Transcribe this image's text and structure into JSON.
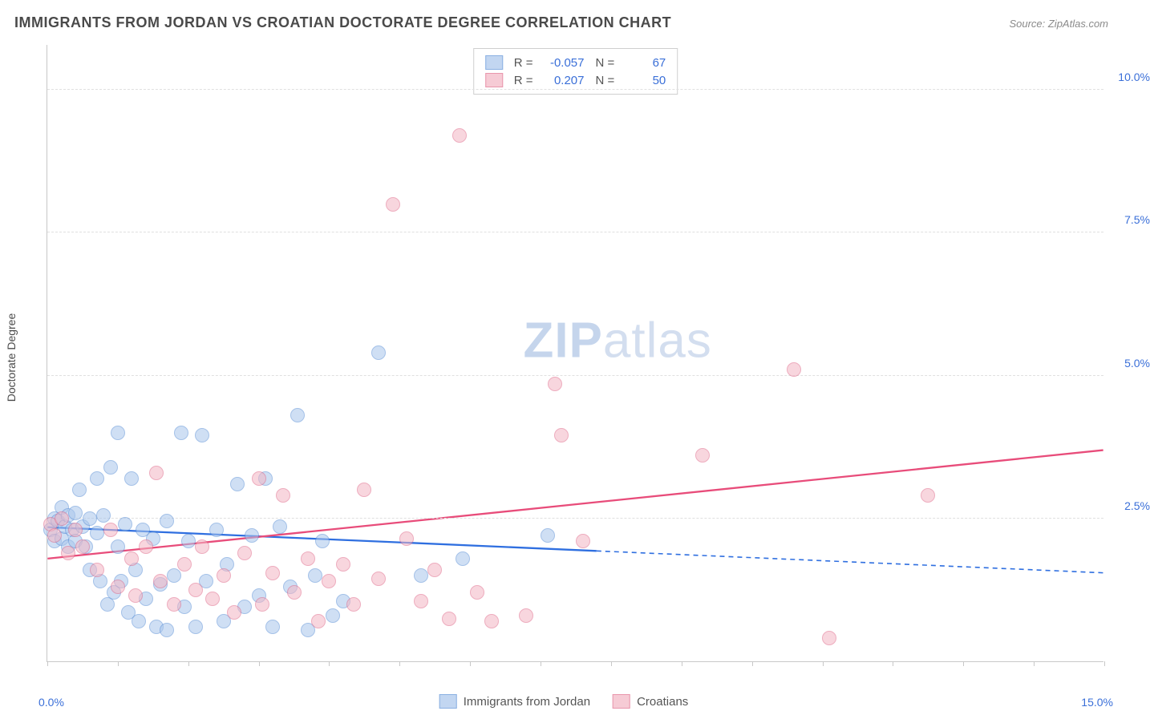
{
  "title": "IMMIGRANTS FROM JORDAN VS CROATIAN DOCTORATE DEGREE CORRELATION CHART",
  "source": "Source: ZipAtlas.com",
  "ylabel": "Doctorate Degree",
  "watermark_zip": "ZIP",
  "watermark_atlas": "atlas",
  "chart": {
    "type": "scatter",
    "xlim": [
      0,
      15
    ],
    "ylim": [
      0,
      10.8
    ],
    "x_axis_labels": {
      "left": "0.0%",
      "right": "15.0%"
    },
    "yticks": [
      {
        "v": 2.5,
        "label": "2.5%"
      },
      {
        "v": 5.0,
        "label": "5.0%"
      },
      {
        "v": 7.5,
        "label": "7.5%"
      },
      {
        "v": 10.0,
        "label": "10.0%"
      }
    ],
    "xtick_positions": [
      0,
      1,
      2,
      3,
      4,
      5,
      6,
      7,
      8,
      9,
      10,
      11,
      12,
      13,
      14,
      15
    ],
    "background_color": "#ffffff",
    "grid_color": "#e0e0e0",
    "marker_radius": 9,
    "marker_stroke": 1.2,
    "series": [
      {
        "key": "jordan",
        "label": "Immigrants from Jordan",
        "fill": "#a9c6ec",
        "stroke": "#5a8fd6",
        "fill_opacity": 0.55,
        "R": "-0.057",
        "N": "67",
        "trend": {
          "y_at_x0": 2.35,
          "y_at_xmax": 1.55,
          "solid_until_x": 7.8,
          "color": "#2f6fe0",
          "width": 2.3
        },
        "points": [
          [
            0.05,
            2.3
          ],
          [
            0.1,
            2.5
          ],
          [
            0.1,
            2.1
          ],
          [
            0.15,
            2.45
          ],
          [
            0.2,
            2.7
          ],
          [
            0.2,
            2.15
          ],
          [
            0.25,
            2.35
          ],
          [
            0.3,
            2.55
          ],
          [
            0.3,
            2.0
          ],
          [
            0.35,
            2.3
          ],
          [
            0.4,
            2.6
          ],
          [
            0.4,
            2.1
          ],
          [
            0.45,
            3.0
          ],
          [
            0.5,
            2.35
          ],
          [
            0.55,
            2.0
          ],
          [
            0.6,
            2.5
          ],
          [
            0.6,
            1.6
          ],
          [
            0.7,
            3.2
          ],
          [
            0.7,
            2.25
          ],
          [
            0.75,
            1.4
          ],
          [
            0.8,
            2.55
          ],
          [
            0.85,
            1.0
          ],
          [
            0.9,
            3.4
          ],
          [
            0.95,
            1.2
          ],
          [
            1.0,
            2.0
          ],
          [
            1.0,
            4.0
          ],
          [
            1.05,
            1.4
          ],
          [
            1.1,
            2.4
          ],
          [
            1.15,
            0.85
          ],
          [
            1.2,
            3.2
          ],
          [
            1.25,
            1.6
          ],
          [
            1.3,
            0.7
          ],
          [
            1.35,
            2.3
          ],
          [
            1.4,
            1.1
          ],
          [
            1.5,
            2.15
          ],
          [
            1.55,
            0.6
          ],
          [
            1.6,
            1.35
          ],
          [
            1.7,
            2.45
          ],
          [
            1.7,
            0.55
          ],
          [
            1.8,
            1.5
          ],
          [
            1.9,
            4.0
          ],
          [
            1.95,
            0.95
          ],
          [
            2.0,
            2.1
          ],
          [
            2.1,
            0.6
          ],
          [
            2.2,
            3.95
          ],
          [
            2.25,
            1.4
          ],
          [
            2.4,
            2.3
          ],
          [
            2.5,
            0.7
          ],
          [
            2.55,
            1.7
          ],
          [
            2.7,
            3.1
          ],
          [
            2.8,
            0.95
          ],
          [
            2.9,
            2.2
          ],
          [
            3.0,
            1.15
          ],
          [
            3.1,
            3.2
          ],
          [
            3.2,
            0.6
          ],
          [
            3.3,
            2.35
          ],
          [
            3.45,
            1.3
          ],
          [
            3.55,
            4.3
          ],
          [
            3.7,
            0.55
          ],
          [
            3.8,
            1.5
          ],
          [
            3.9,
            2.1
          ],
          [
            4.05,
            0.8
          ],
          [
            4.2,
            1.05
          ],
          [
            4.7,
            5.4
          ],
          [
            5.3,
            1.5
          ],
          [
            5.9,
            1.8
          ],
          [
            7.1,
            2.2
          ]
        ]
      },
      {
        "key": "croatians",
        "label": "Croatians",
        "fill": "#f3b6c4",
        "stroke": "#e06a8a",
        "fill_opacity": 0.55,
        "R": "0.207",
        "N": "50",
        "trend": {
          "y_at_x0": 1.8,
          "y_at_xmax": 3.7,
          "solid_until_x": 15,
          "color": "#e84c7a",
          "width": 2.3
        },
        "points": [
          [
            0.05,
            2.4
          ],
          [
            0.1,
            2.2
          ],
          [
            0.2,
            2.5
          ],
          [
            0.3,
            1.9
          ],
          [
            0.4,
            2.3
          ],
          [
            0.5,
            2.0
          ],
          [
            0.7,
            1.6
          ],
          [
            0.9,
            2.3
          ],
          [
            1.0,
            1.3
          ],
          [
            1.2,
            1.8
          ],
          [
            1.25,
            1.15
          ],
          [
            1.4,
            2.0
          ],
          [
            1.55,
            3.3
          ],
          [
            1.6,
            1.4
          ],
          [
            1.8,
            1.0
          ],
          [
            1.95,
            1.7
          ],
          [
            2.1,
            1.25
          ],
          [
            2.2,
            2.0
          ],
          [
            2.35,
            1.1
          ],
          [
            2.5,
            1.5
          ],
          [
            2.65,
            0.85
          ],
          [
            2.8,
            1.9
          ],
          [
            3.0,
            3.2
          ],
          [
            3.05,
            1.0
          ],
          [
            3.2,
            1.55
          ],
          [
            3.35,
            2.9
          ],
          [
            3.5,
            1.2
          ],
          [
            3.7,
            1.8
          ],
          [
            3.85,
            0.7
          ],
          [
            4.0,
            1.4
          ],
          [
            4.2,
            1.7
          ],
          [
            4.35,
            1.0
          ],
          [
            4.5,
            3.0
          ],
          [
            4.7,
            1.45
          ],
          [
            4.9,
            8.0
          ],
          [
            5.1,
            2.15
          ],
          [
            5.3,
            1.05
          ],
          [
            5.5,
            1.6
          ],
          [
            5.7,
            0.75
          ],
          [
            5.85,
            9.2
          ],
          [
            6.1,
            1.2
          ],
          [
            6.3,
            0.7
          ],
          [
            6.8,
            0.8
          ],
          [
            7.2,
            4.85
          ],
          [
            7.3,
            3.95
          ],
          [
            7.6,
            2.1
          ],
          [
            9.3,
            3.6
          ],
          [
            10.6,
            5.1
          ],
          [
            11.1,
            0.4
          ],
          [
            12.5,
            2.9
          ]
        ]
      }
    ]
  },
  "legend_stats_label_R": "R =",
  "legend_stats_label_N": "N ="
}
